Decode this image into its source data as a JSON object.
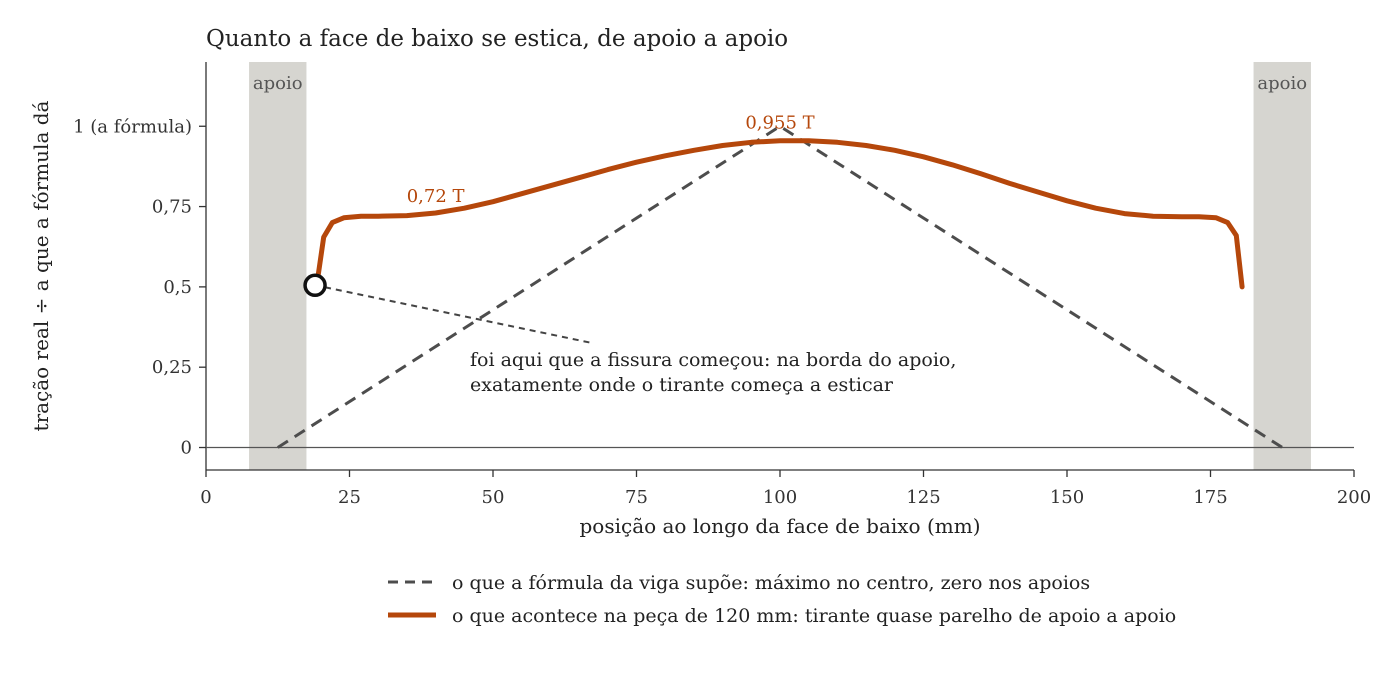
{
  "chart_data": {
    "type": "line",
    "title": "Quanto a face de baixo se estica, de apoio a apoio",
    "xlabel": "posição ao longo da face de baixo (mm)",
    "ylabel": "tração real ÷ a que a fórmula dá",
    "xlim": [
      0,
      200
    ],
    "ylim": [
      -0.07,
      1.2
    ],
    "x_ticks": [
      {
        "v": 0,
        "label": "0"
      },
      {
        "v": 25,
        "label": "25"
      },
      {
        "v": 50,
        "label": "50"
      },
      {
        "v": 75,
        "label": "75"
      },
      {
        "v": 100,
        "label": "100"
      },
      {
        "v": 125,
        "label": "125"
      },
      {
        "v": 150,
        "label": "150"
      },
      {
        "v": 175,
        "label": "175"
      },
      {
        "v": 200,
        "label": "200"
      }
    ],
    "y_ticks": [
      {
        "v": 0,
        "label": "0"
      },
      {
        "v": 0.25,
        "label": "0,25"
      },
      {
        "v": 0.5,
        "label": "0,5"
      },
      {
        "v": 0.75,
        "label": "0,75"
      },
      {
        "v": 1,
        "label": "1 (a fórmula)"
      }
    ],
    "grid": false,
    "supports": [
      {
        "x0": 7.5,
        "x1": 17.5,
        "label": "apoio"
      },
      {
        "x0": 182.5,
        "x1": 192.5,
        "label": "apoio"
      }
    ],
    "series": [
      {
        "name": "o que a fórmula da viga supõe: máximo no centro, zero nos apoios",
        "style": "dashed",
        "color": "#4d4d4d",
        "x": [
          12.5,
          100,
          187.5
        ],
        "y": [
          0,
          1,
          0
        ]
      },
      {
        "name": "o que acontece na peça de 120 mm: tirante quase parelho de apoio a apoio",
        "style": "solid",
        "color": "#b5470b",
        "x": [
          19.5,
          20.5,
          22,
          24,
          27,
          30,
          35,
          40,
          45,
          50,
          55,
          60,
          65,
          70,
          75,
          80,
          85,
          90,
          95,
          100,
          105,
          110,
          115,
          120,
          125,
          130,
          135,
          140,
          145,
          150,
          155,
          160,
          165,
          170,
          173,
          176,
          178,
          179.5,
          180.5
        ],
        "y": [
          0.53,
          0.655,
          0.7,
          0.715,
          0.72,
          0.72,
          0.722,
          0.73,
          0.745,
          0.765,
          0.79,
          0.815,
          0.84,
          0.865,
          0.888,
          0.908,
          0.925,
          0.94,
          0.95,
          0.955,
          0.955,
          0.95,
          0.94,
          0.925,
          0.905,
          0.88,
          0.852,
          0.822,
          0.795,
          0.768,
          0.745,
          0.728,
          0.72,
          0.718,
          0.718,
          0.715,
          0.7,
          0.66,
          0.5
        ]
      }
    ],
    "annotations": [
      {
        "text": "0,72 T",
        "x": 40,
        "y": 0.77,
        "color": "#b5470b"
      },
      {
        "text": "0,955 T",
        "x": 100,
        "y": 1.0,
        "color": "#b5470b"
      }
    ],
    "callout": {
      "marker": {
        "x": 19,
        "y": 0.505
      },
      "lines": [
        "foi aqui que a fissura começou: na borda do apoio,",
        "exatamente onde o tirante começa a esticar"
      ]
    },
    "legend": {
      "position": "bottom"
    }
  }
}
